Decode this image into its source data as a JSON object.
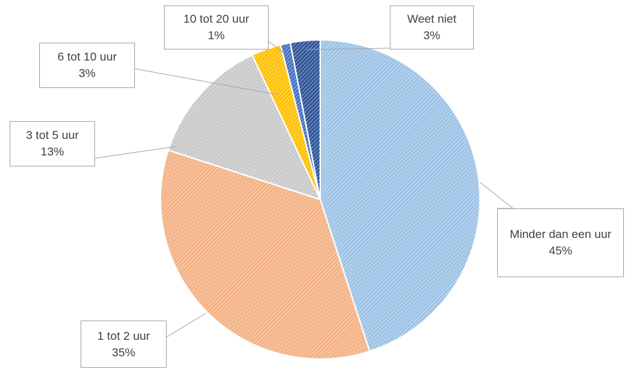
{
  "chart_data": {
    "type": "pie",
    "categories": [
      "Minder dan een uur",
      "1 tot 2 uur",
      "3 tot 5 uur",
      "6 tot 10 uur",
      "10 tot 20 uur",
      "Weet niet"
    ],
    "values": [
      45,
      35,
      13,
      3,
      1,
      3
    ],
    "value_labels": [
      "45%",
      "35%",
      "13%",
      "3%",
      "1%",
      "3%"
    ],
    "colors": [
      "#9dc3e6",
      "#f4b183",
      "#c9c9c9",
      "#ffc000",
      "#4472c4",
      "#2f5597"
    ]
  }
}
